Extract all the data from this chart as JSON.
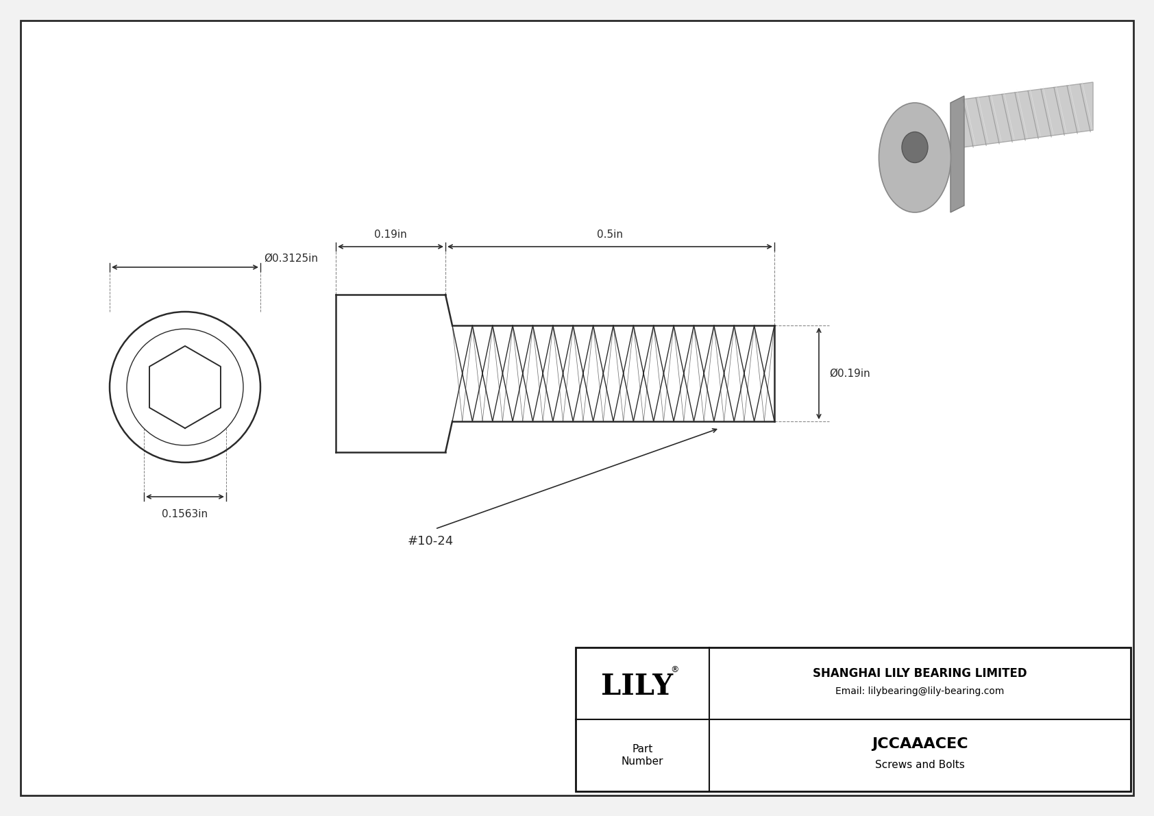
{
  "bg_color": "#f2f2f2",
  "drawing_bg": "#ffffff",
  "border_color": "#2a2a2a",
  "line_color": "#2a2a2a",
  "title": "JCCAAACEC",
  "subtitle": "Screws and Bolts",
  "company": "SHANGHAI LILY BEARING LIMITED",
  "email": "Email: lilybearing@lily-bearing.com",
  "part_label": "Part\nNumber",
  "dim_head_diameter": "Ø0.3125in",
  "dim_hex_diameter": "0.1563in",
  "dim_head_length": "0.19in",
  "dim_thread_length": "0.5in",
  "dim_thread_diameter": "Ø0.19in",
  "thread_label": "#10-24",
  "lily_logo": "LILY",
  "fig_width": 16.84,
  "fig_height": 11.91
}
